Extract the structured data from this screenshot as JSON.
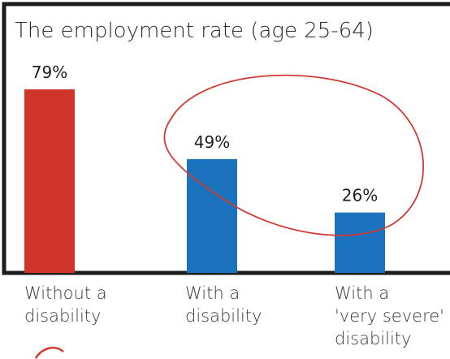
{
  "chart_data": {
    "type": "bar",
    "title": "The employment rate (age 25-64)",
    "categories": [
      "Without a\ndisability",
      "With a\ndisability",
      "With a\n'very severe'\ndisability"
    ],
    "values": [
      79,
      49,
      26
    ],
    "value_labels": [
      "79%",
      "49%",
      "26%"
    ],
    "bar_colors": [
      "#d13429",
      "#1b72bd",
      "#1b72bd"
    ],
    "ylim": [
      0,
      100
    ],
    "xlabel": "",
    "ylabel": "",
    "grid": false,
    "annotation": {
      "shape": "hand-drawn ellipse",
      "color": "#cf3a33",
      "encircles": [
        "49%",
        "26%"
      ]
    }
  }
}
